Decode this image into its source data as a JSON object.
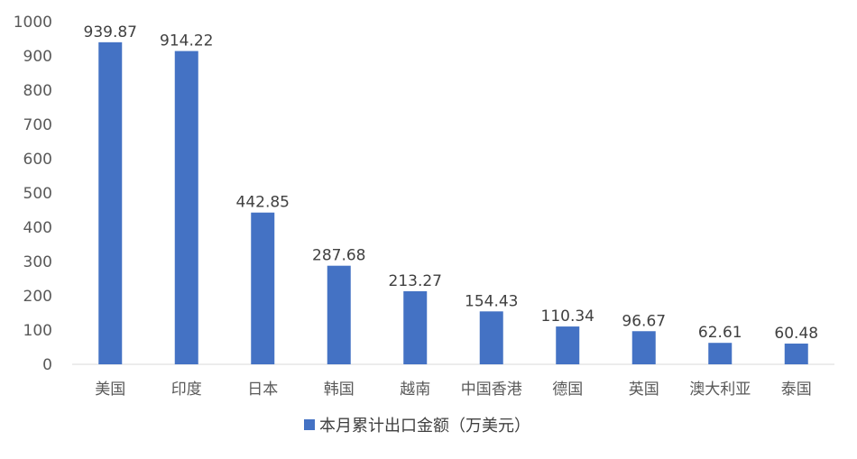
{
  "chart_data": {
    "type": "bar",
    "categories": [
      "美国",
      "印度",
      "日本",
      "韩国",
      "越南",
      "中国香港",
      "德国",
      "英国",
      "澳大利亚",
      "泰国"
    ],
    "series": [
      {
        "name": "本月累计出口金额（万美元）",
        "values": [
          939.87,
          914.22,
          442.85,
          287.68,
          213.27,
          154.43,
          110.34,
          96.67,
          62.61,
          60.48
        ],
        "labels": [
          "939.87",
          "914.22",
          "442.85",
          "287.68",
          "213.27",
          "154.43",
          "110.34",
          "96.67",
          "62.61",
          "60.48"
        ]
      }
    ],
    "ylim": [
      0,
      1000
    ],
    "yticks": [
      "0",
      "100",
      "200",
      "300",
      "400",
      "500",
      "600",
      "700",
      "800",
      "900",
      "1000"
    ],
    "grid": false,
    "legend": "bottom",
    "bar_color": "#4472C4"
  }
}
